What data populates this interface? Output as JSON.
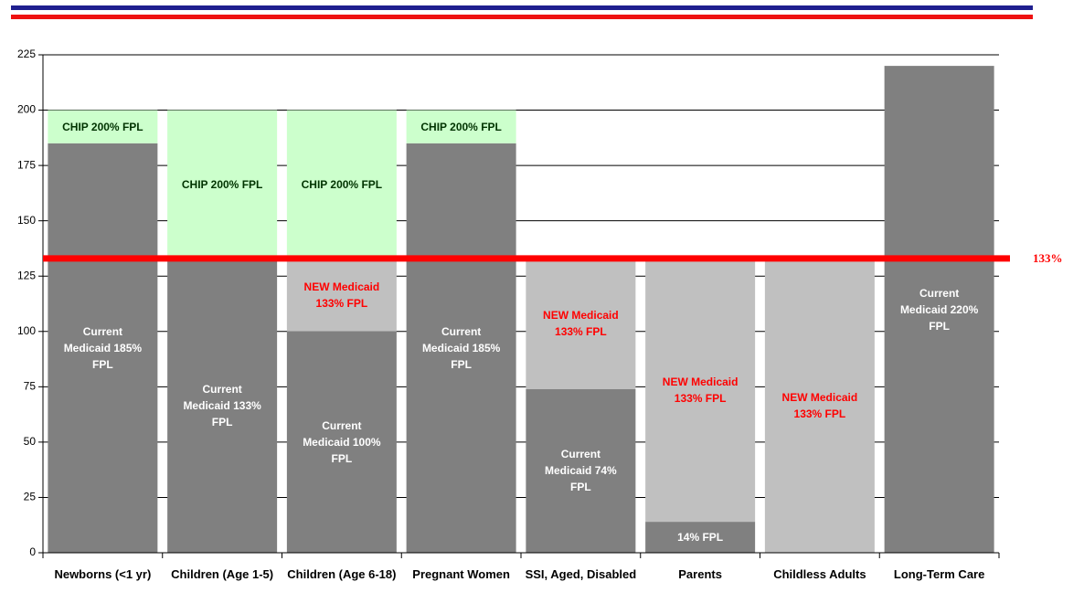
{
  "chart_data": {
    "type": "stacked_bar",
    "categories": [
      "Newborns (<1 yr)",
      "Children (Age 1-5)",
      "Children (Age 6-18)",
      "Pregnant Women",
      "SSI, Aged, Disabled",
      "Parents",
      "Childless Adults",
      "Long-Term Care"
    ],
    "series": [
      {
        "color": "#808080",
        "label_color": "#ffffff",
        "values": [
          185,
          133,
          100,
          185,
          74,
          14,
          null,
          220
        ],
        "segment_labels": [
          "Current Medicaid 185% FPL",
          "Current Medicaid 133% FPL",
          "Current Medicaid 100% FPL",
          "Current Medicaid 185% FPL",
          "Current Medicaid 74% FPL",
          "14% FPL",
          null,
          "Current Medicaid 220% FPL"
        ]
      },
      {
        "color": "#c0c0c0",
        "label_color": "#ff0000",
        "values": [
          null,
          null,
          33,
          null,
          59,
          119,
          133,
          null
        ],
        "segment_labels": [
          null,
          null,
          "NEW Medicaid 133% FPL",
          null,
          "NEW Medicaid 133% FPL",
          "NEW Medicaid 133% FPL",
          "NEW Medicaid 133% FPL",
          null
        ]
      },
      {
        "color": "#ccffcc",
        "label_color": "#003300",
        "values": [
          15,
          67,
          67,
          15,
          null,
          null,
          null,
          null
        ],
        "segment_labels": [
          "CHIP 200% FPL",
          "CHIP 200% FPL",
          "CHIP 200% FPL",
          "CHIP 200% FPL",
          null,
          null,
          null,
          null
        ]
      }
    ],
    "ylim": [
      0,
      225
    ],
    "yticks": [
      0,
      25,
      50,
      75,
      100,
      125,
      150,
      175,
      200,
      225
    ],
    "grid": true,
    "reference_line": {
      "value": 133,
      "label": "133%",
      "color": "#ff0000"
    }
  }
}
